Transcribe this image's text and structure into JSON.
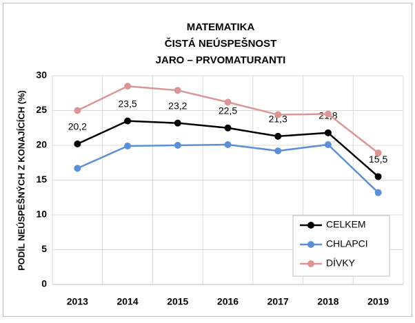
{
  "chart_data": {
    "type": "line",
    "title": [
      "MATEMATIKA",
      "ČISTÁ NEÚSPEŠNOST",
      "JARO – PRVOMATURANTI"
    ],
    "y_label": "PODÍL NEÚSPEŠNÝCH Z KONAJÍCÍCH (%)",
    "categories": [
      "2013",
      "2014",
      "2015",
      "2016",
      "2017",
      "2018",
      "2019"
    ],
    "series": [
      {
        "name": "CELKEM",
        "color": "#000000",
        "values": [
          20.2,
          23.5,
          23.2,
          22.5,
          21.3,
          21.8,
          15.5
        ],
        "value_labels": [
          "20,2",
          "23,5",
          "23,2",
          "22,5",
          "21,3",
          "21,8",
          "15,5"
        ]
      },
      {
        "name": "CHLAPCI",
        "color": "#5b8fd6",
        "values": [
          16.7,
          19.9,
          20.0,
          20.1,
          19.2,
          20.1,
          13.2
        ]
      },
      {
        "name": "DÍVKY",
        "color": "#d99694",
        "values": [
          25.0,
          28.5,
          27.9,
          26.2,
          24.4,
          24.5,
          18.9
        ]
      }
    ],
    "ylim": [
      0,
      30
    ],
    "yticks": [
      0,
      5,
      10,
      15,
      20,
      25,
      30
    ],
    "grid": true,
    "legend": "bottom-right"
  }
}
